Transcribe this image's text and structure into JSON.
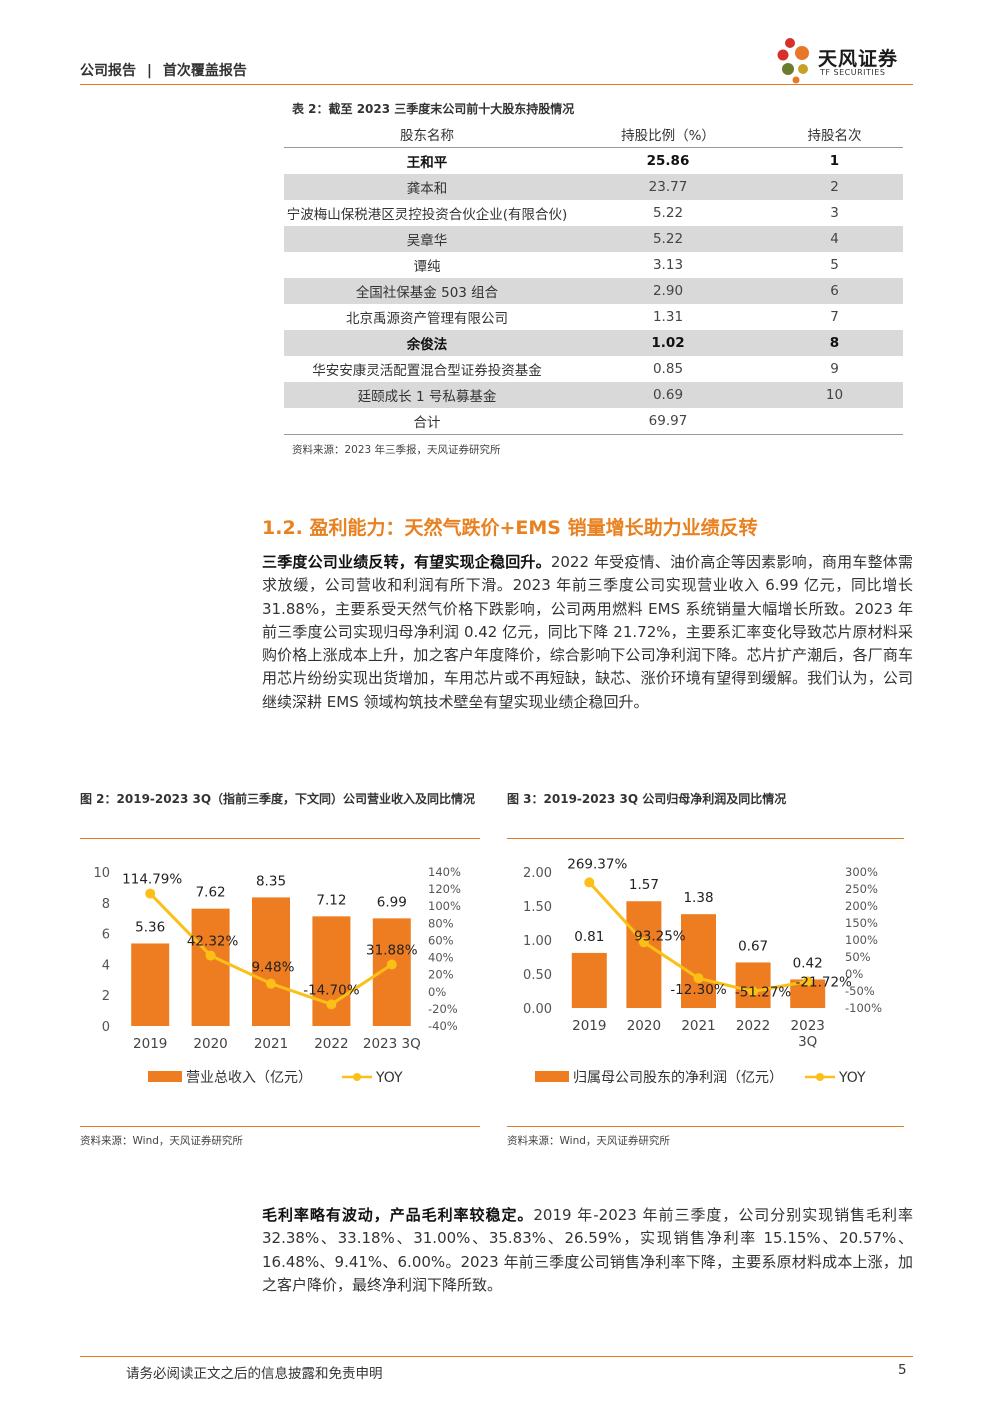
{
  "header": {
    "category": "公司报告",
    "separator": "|",
    "subcategory": "首次覆盖报告",
    "logo_cn": "天风证券",
    "logo_en": "TF SECURITIES"
  },
  "table": {
    "title": "表 2：截至 2023 三季度末公司前十大股东持股情况",
    "headers": [
      "股东名称",
      "持股比例（%）",
      "持股名次"
    ],
    "rows": [
      {
        "name": "王和平",
        "ratio": "25.86",
        "rank": "1"
      },
      {
        "name": "龚本和",
        "ratio": "23.77",
        "rank": "2"
      },
      {
        "name": "宁波梅山保税港区灵控投资合伙企业(有限合伙)",
        "ratio": "5.22",
        "rank": "3"
      },
      {
        "name": "吴章华",
        "ratio": "5.22",
        "rank": "4"
      },
      {
        "name": "谭纯",
        "ratio": "3.13",
        "rank": "5"
      },
      {
        "name": "全国社保基金 503 组合",
        "ratio": "2.90",
        "rank": "6"
      },
      {
        "name": "北京禹源资产管理有限公司",
        "ratio": "1.31",
        "rank": "7"
      },
      {
        "name": "余俊法",
        "ratio": "1.02",
        "rank": "8"
      },
      {
        "name": "华安安康灵活配置混合型证券投资基金",
        "ratio": "0.85",
        "rank": "9"
      },
      {
        "name": "廷颐成长 1 号私募基金",
        "ratio": "0.69",
        "rank": "10"
      },
      {
        "name": "合计",
        "ratio": "69.97",
        "rank": ""
      }
    ],
    "source": "资料来源：2023 年三季报，天风证券研究所"
  },
  "section": {
    "title": "1.2. 盈利能力：天然气跌价+EMS 销量增长助力业绩反转",
    "para1_lead": "三季度公司业绩反转，有望实现企稳回升。",
    "para1_body": "2022 年受疫情、油价高企等因素影响，商用车整体需求放缓，公司营收和利润有所下滑。2023 年前三季度公司实现营业收入 6.99 亿元，同比增长 31.88%，主要系受天然气价格下跌影响，公司两用燃料 EMS 系统销量大幅增长所致。2023 年前三季度公司实现归母净利润 0.42 亿元，同比下降 21.72%，主要系汇率变化导致芯片原材料采购价格上涨成本上升，加之客户年度降价，综合影响下公司净利润下降。芯片扩产潮后，各厂商车用芯片纷纷实现出货增加，车用芯片或不再短缺，缺芯、涨价环境有望得到缓解。我们认为，公司继续深耕 EMS 领域构筑技术壁垒有望实现业绩企稳回升。",
    "para2_lead": "毛利率略有波动，产品毛利率较稳定。",
    "para2_body": "2019 年-2023 年前三季度，公司分别实现销售毛利率 32.38%、33.18%、31.00%、35.83%、26.59%，实现销售净利率 15.15%、20.57%、16.48%、9.41%、6.00%。2023 年前三季度公司销售净利率下降，主要系原材料成本上涨，加之客户降价，最终净利润下降所致。"
  },
  "figures": {
    "fig2_title": "图 2：2019-2023 3Q（指前三季度，下文同）公司营业收入及同比情况",
    "fig3_title": "图 3：2019-2023 3Q 公司归母净利润及同比情况",
    "fig2_source": "资料来源：Wind，天风证券研究所",
    "fig3_source": "资料来源：Wind，天风证券研究所"
  },
  "chart_data": [
    {
      "type": "bar",
      "categories": [
        "2019",
        "2020",
        "2021",
        "2022",
        "2023 3Q"
      ],
      "series": [
        {
          "name": "营业总收入（亿元）",
          "type": "bar",
          "axis": "left",
          "values": [
            5.36,
            7.62,
            8.35,
            7.12,
            6.99
          ],
          "labels": [
            "5.36",
            "7.62",
            "8.35",
            "7.12",
            "6.99"
          ]
        },
        {
          "name": "YOY",
          "type": "line",
          "axis": "right",
          "values": [
            114.79,
            42.32,
            9.48,
            -14.7,
            31.88
          ],
          "labels": [
            "114.79%",
            "42.32%",
            "9.48%",
            "-14.70%",
            "31.88%"
          ]
        }
      ],
      "left_axis": {
        "ylim": [
          0,
          10
        ],
        "ticks": [
          "0",
          "2",
          "4",
          "6",
          "8",
          "10"
        ]
      },
      "right_axis": {
        "ylim": [
          -40,
          140
        ],
        "ticks": [
          "-40%",
          "-20%",
          "0%",
          "20%",
          "40%",
          "60%",
          "80%",
          "100%",
          "120%",
          "140%"
        ]
      },
      "legend": "bottom",
      "colors": {
        "bar": "#ee7d22",
        "line": "#fbbf17"
      }
    },
    {
      "type": "bar",
      "categories": [
        "2019",
        "2020",
        "2021",
        "2022",
        "2023 3Q"
      ],
      "series": [
        {
          "name": "归属母公司股东的净利润（亿元）",
          "type": "bar",
          "axis": "left",
          "values": [
            0.81,
            1.57,
            1.38,
            0.67,
            0.42
          ],
          "labels": [
            "0.81",
            "1.57",
            "1.38",
            "0.67",
            "0.42"
          ]
        },
        {
          "name": "YOY",
          "type": "line",
          "axis": "right",
          "values": [
            269.37,
            93.25,
            -12.3,
            -51.27,
            -21.72
          ],
          "labels": [
            "269.37%",
            "93.25%",
            "-12.30%",
            "-51.27%",
            "-21.72%"
          ]
        }
      ],
      "left_axis": {
        "ylim": [
          0,
          2.0
        ],
        "ticks": [
          "0.00",
          "0.50",
          "1.00",
          "1.50",
          "2.00"
        ]
      },
      "right_axis": {
        "ylim": [
          -100,
          300
        ],
        "ticks": [
          "-100%",
          "-50%",
          "0%",
          "50%",
          "100%",
          "150%",
          "200%",
          "250%",
          "300%"
        ]
      },
      "legend": "bottom",
      "colors": {
        "bar": "#ee7d22",
        "line": "#fbbf17"
      }
    }
  ],
  "footer": {
    "disclaimer": "请务必阅读正文之后的信息披露和免责申明",
    "page": "5"
  }
}
